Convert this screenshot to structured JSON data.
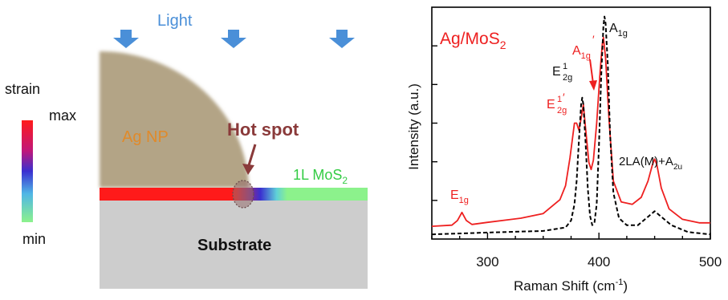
{
  "left_panel": {
    "light_label": "Light",
    "ag_np_label": "Ag NP",
    "hot_spot_label": "Hot spot",
    "mos2_label_main": "1L MoS",
    "mos2_label_sub": "2",
    "substrate_label": "Substrate",
    "strain_title": "strain",
    "strain_max": "max",
    "strain_min": "min",
    "colors": {
      "light_arrow": "#4a8fd8",
      "ag_np": "#b3a486",
      "strain_max": "#ff1a1a",
      "strain_mid": "#3a2fd0",
      "strain_min": "#8cf28c",
      "substrate": "#cdcdcd",
      "hot_spot_text": "#8a3a3a"
    }
  },
  "chart_data": {
    "type": "line",
    "title": "",
    "legend_label_main": "Ag/MoS",
    "legend_label_sub": "2",
    "xlabel_main": "Raman Shift (cm",
    "xlabel_sup": "-1",
    "xlabel_end": ")",
    "ylabel": "Intensity (a.u.)",
    "xlim": [
      250,
      500
    ],
    "ylim": [
      0,
      1
    ],
    "x_ticks": [
      300,
      400,
      500
    ],
    "x_tick_labels": [
      "300",
      "400",
      "500"
    ],
    "y_tick_labels_visible": false,
    "series": [
      {
        "style": "solid",
        "color": "#ee2020",
        "x": [
          250,
          268,
          273,
          277,
          281,
          286,
          300,
          330,
          350,
          365,
          370,
          374,
          378,
          380,
          382,
          384,
          386,
          388,
          391,
          393,
          395,
          398,
          401,
          403,
          404,
          406,
          409,
          413,
          420,
          430,
          438,
          444,
          448,
          450,
          452,
          456,
          463,
          475,
          490,
          500
        ],
        "y": [
          0.055,
          0.06,
          0.08,
          0.115,
          0.08,
          0.063,
          0.072,
          0.09,
          0.11,
          0.17,
          0.23,
          0.35,
          0.5,
          0.5,
          0.47,
          0.52,
          0.58,
          0.48,
          0.33,
          0.3,
          0.34,
          0.5,
          0.72,
          0.84,
          0.87,
          0.78,
          0.52,
          0.25,
          0.16,
          0.15,
          0.18,
          0.25,
          0.32,
          0.345,
          0.32,
          0.22,
          0.13,
          0.085,
          0.07,
          0.07
        ]
      },
      {
        "style": "dashed",
        "color": "#000000",
        "x": [
          250,
          300,
          350,
          370,
          375,
          378,
          380,
          382,
          384,
          385,
          386,
          388,
          390,
          392,
          394,
          396,
          398,
          400,
          402,
          404,
          405,
          406,
          408,
          410,
          413,
          418,
          425,
          435,
          445,
          450,
          455,
          465,
          480,
          500
        ],
        "y": [
          0.02,
          0.028,
          0.035,
          0.05,
          0.08,
          0.15,
          0.25,
          0.42,
          0.58,
          0.61,
          0.58,
          0.42,
          0.22,
          0.1,
          0.06,
          0.07,
          0.15,
          0.4,
          0.7,
          0.92,
          0.96,
          0.93,
          0.75,
          0.45,
          0.2,
          0.09,
          0.06,
          0.06,
          0.1,
          0.12,
          0.1,
          0.06,
          0.03,
          0.02
        ]
      }
    ],
    "annotations": [
      {
        "id": "e1g",
        "text": "E",
        "sub": "1g",
        "sup": "",
        "prime": false,
        "color": "#ee2020"
      },
      {
        "id": "e2g-ag",
        "text": "E",
        "sub": "2g",
        "sup": "1",
        "prime": true,
        "color": "#ee2020"
      },
      {
        "id": "e2g",
        "text": "E",
        "sub": "2g",
        "sup": "1",
        "prime": false,
        "color": "#111111"
      },
      {
        "id": "a1g-ag",
        "text": "A",
        "sub": "1g",
        "sup": "",
        "prime": true,
        "color": "#ee2020"
      },
      {
        "id": "a1g",
        "text": "A",
        "sub": "1g",
        "sup": "",
        "prime": false,
        "color": "#111111"
      },
      {
        "id": "2la",
        "text": "2LA(M)+A",
        "sub": "2u",
        "sup": "",
        "prime": false,
        "color": "#111111"
      }
    ]
  }
}
